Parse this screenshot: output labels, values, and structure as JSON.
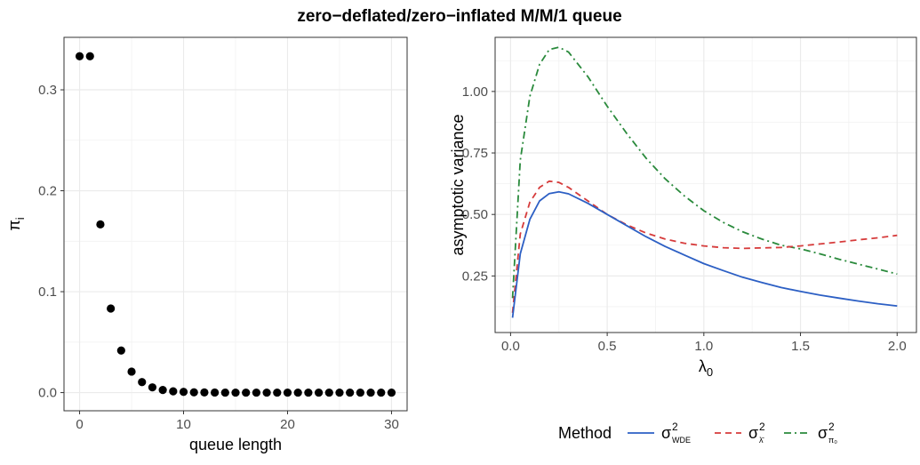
{
  "title": "zero−deflated/zero−inflated M/M/1 queue",
  "colors": {
    "wde": "#2c5fc4",
    "lambda": "#d63b3b",
    "pi0": "#2a8a3c",
    "points": "#000000"
  },
  "chart_data": [
    {
      "type": "scatter",
      "xlabel": "queue length",
      "ylabel_symbol": "π",
      "ylabel_sub": "i",
      "xlim": [
        -1.5,
        31.5
      ],
      "ylim": [
        -0.018,
        0.352
      ],
      "xticks": [
        0,
        10,
        20,
        30
      ],
      "xtick_labels": [
        "0",
        "10",
        "20",
        "30"
      ],
      "yticks": [
        0.0,
        0.1,
        0.2,
        0.3
      ],
      "ytick_labels": [
        "0.0",
        "0.1",
        "0.2",
        "0.3"
      ],
      "grid": true,
      "x": [
        0,
        1,
        2,
        3,
        4,
        5,
        6,
        7,
        8,
        9,
        10,
        11,
        12,
        13,
        14,
        15,
        16,
        17,
        18,
        19,
        20,
        21,
        22,
        23,
        24,
        25,
        26,
        27,
        28,
        29,
        30
      ],
      "y": [
        0.3333,
        0.3333,
        0.1667,
        0.0833,
        0.0417,
        0.0208,
        0.0104,
        0.0052,
        0.0026,
        0.0013,
        0.0007,
        0.0003,
        0.0002,
        0.0001,
        0,
        0,
        0,
        0,
        0,
        0,
        0,
        0,
        0,
        0,
        0,
        0,
        0,
        0,
        0,
        0,
        0
      ]
    },
    {
      "type": "line",
      "xlabel_symbol": "λ",
      "xlabel_sub": "0",
      "ylabel": "asymptotic variance",
      "xlim": [
        -0.08,
        2.1
      ],
      "ylim": [
        0.02,
        1.22
      ],
      "xticks": [
        0.0,
        0.5,
        1.0,
        1.5,
        2.0
      ],
      "xtick_labels": [
        "0.0",
        "0.5",
        "1.0",
        "1.5",
        "2.0"
      ],
      "yticks": [
        0.25,
        0.5,
        0.75,
        1.0
      ],
      "ytick_labels": [
        "0.25",
        "0.50",
        "0.75",
        "1.00"
      ],
      "grid": true,
      "legend": {
        "title": "Method",
        "position": "bottom",
        "items": [
          {
            "sym": "σ",
            "sup": "2",
            "sub": "WDE",
            "dash": "solid"
          },
          {
            "sym": "σ",
            "sup": "2",
            "sub": "λ̄",
            "dash": "dashed"
          },
          {
            "sym": "σ",
            "sup": "2",
            "sub": "π₀",
            "dash": "dotdash"
          }
        ]
      },
      "x": [
        0.01,
        0.05,
        0.1,
        0.15,
        0.2,
        0.25,
        0.3,
        0.4,
        0.5,
        0.6,
        0.7,
        0.8,
        0.9,
        1.0,
        1.1,
        1.2,
        1.3,
        1.4,
        1.5,
        1.6,
        1.7,
        1.8,
        1.9,
        2.0
      ],
      "series": [
        {
          "name": "WDE",
          "values": [
            0.08,
            0.34,
            0.48,
            0.555,
            0.585,
            0.592,
            0.584,
            0.545,
            0.5,
            0.455,
            0.41,
            0.37,
            0.335,
            0.3,
            0.272,
            0.245,
            0.223,
            0.203,
            0.187,
            0.172,
            0.16,
            0.148,
            0.137,
            0.128
          ]
        },
        {
          "name": "lambda",
          "values": [
            0.1,
            0.42,
            0.55,
            0.61,
            0.635,
            0.63,
            0.61,
            0.555,
            0.5,
            0.458,
            0.425,
            0.4,
            0.383,
            0.372,
            0.365,
            0.362,
            0.364,
            0.366,
            0.372,
            0.38,
            0.388,
            0.397,
            0.405,
            0.415
          ]
        },
        {
          "name": "pi0",
          "values": [
            0.16,
            0.72,
            0.98,
            1.11,
            1.17,
            1.18,
            1.16,
            1.06,
            0.94,
            0.83,
            0.73,
            0.645,
            0.575,
            0.515,
            0.468,
            0.43,
            0.4,
            0.375,
            0.36,
            0.34,
            0.318,
            0.298,
            0.278,
            0.258
          ]
        }
      ]
    }
  ]
}
